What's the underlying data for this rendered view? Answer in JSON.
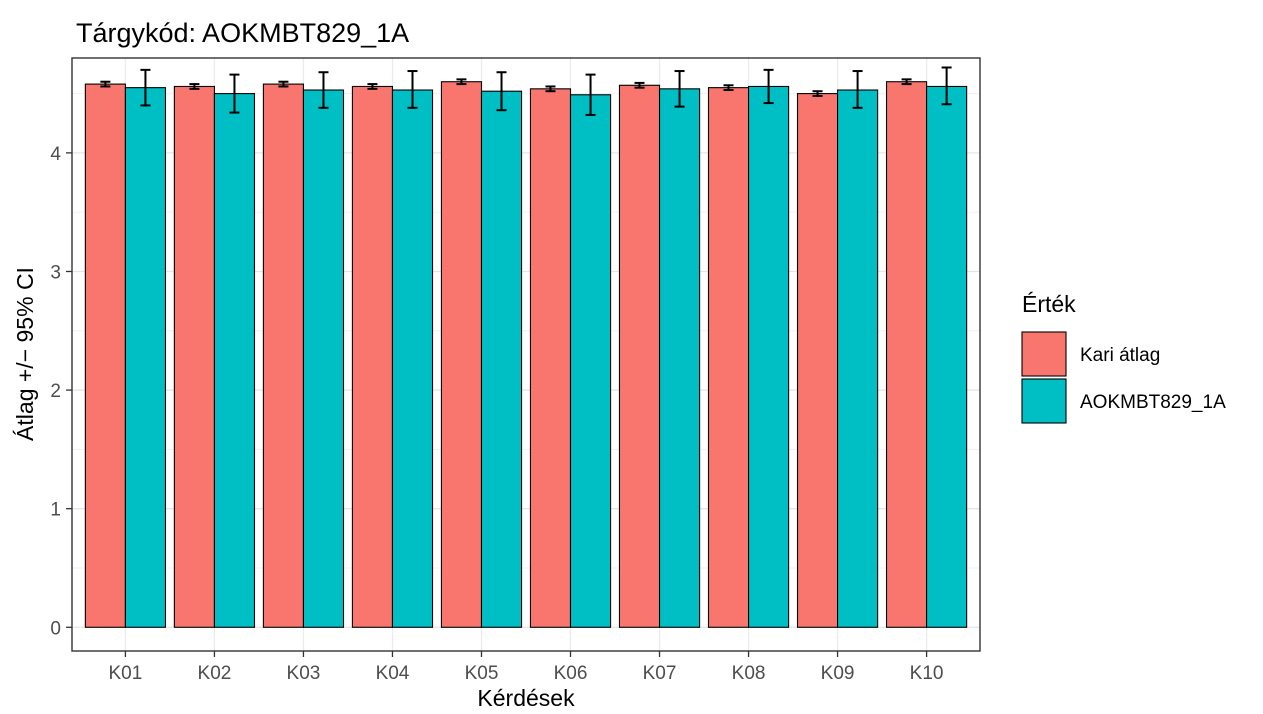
{
  "chart_data": {
    "type": "bar",
    "title": "Tárgykód:  AOKMBT829_1A",
    "xlabel": "Kérdések",
    "ylabel": "Átlag +/− 95% CI",
    "categories": [
      "K01",
      "K02",
      "K03",
      "K04",
      "K05",
      "K06",
      "K07",
      "K08",
      "K09",
      "K10"
    ],
    "series": [
      {
        "name": "Kari átlag",
        "color": "#F8766D",
        "values": [
          4.58,
          4.56,
          4.58,
          4.56,
          4.6,
          4.54,
          4.57,
          4.55,
          4.5,
          4.6
        ],
        "ci_low": [
          4.56,
          4.54,
          4.56,
          4.54,
          4.58,
          4.52,
          4.55,
          4.53,
          4.48,
          4.58
        ],
        "ci_high": [
          4.6,
          4.58,
          4.6,
          4.58,
          4.62,
          4.56,
          4.59,
          4.57,
          4.52,
          4.62
        ]
      },
      {
        "name": "AOKMBT829_1A",
        "color": "#00BFC4",
        "values": [
          4.55,
          4.5,
          4.53,
          4.53,
          4.52,
          4.49,
          4.54,
          4.56,
          4.53,
          4.56
        ],
        "ci_low": [
          4.4,
          4.34,
          4.38,
          4.38,
          4.36,
          4.32,
          4.39,
          4.42,
          4.38,
          4.41
        ],
        "ci_high": [
          4.7,
          4.66,
          4.68,
          4.69,
          4.68,
          4.66,
          4.69,
          4.7,
          4.69,
          4.72
        ]
      }
    ],
    "ylim": [
      -0.2,
      4.8
    ],
    "yticks": [
      0,
      1,
      2,
      3,
      4
    ],
    "grid": true,
    "legend": {
      "title": "Érték",
      "placement": "right"
    }
  }
}
